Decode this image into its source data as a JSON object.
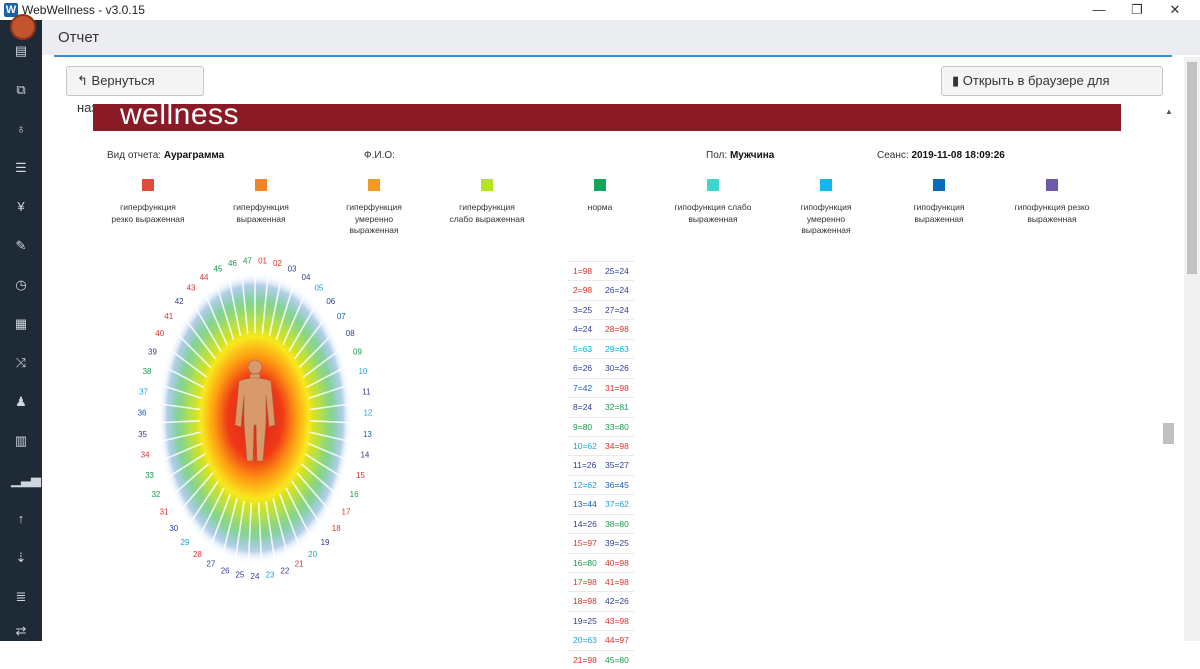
{
  "window": {
    "logo_letter": "W",
    "title": "WebWellness - v3.0.15",
    "minimize_symbol": "—",
    "restore_symbol": "❐",
    "close_symbol": "✕"
  },
  "sidebar": {
    "icons": [
      "avatar",
      "id-card-icon",
      "copy-icon",
      "stethoscope-icon",
      "sliders-icon",
      "cutlery-icon",
      "pencil-icon",
      "clock-icon",
      "calculator-icon",
      "shuffle-icon",
      "person-icon",
      "bar-chart-icon",
      "signal-icon",
      "arrow-up-icon",
      "sort-numeric-icon",
      "list-icon",
      "exchange-icon"
    ]
  },
  "header": {
    "title": "Отчет"
  },
  "toolbar": {
    "back_label": "Вернуться назад",
    "print_label": "Открыть в браузере для печати"
  },
  "report": {
    "banner_text": "wellness",
    "report_type_label": "Вид отчета:",
    "report_type_value": "Аураграмма",
    "fio_label": "Ф.И.О:",
    "gender_label": "Пол:",
    "gender_value": "Мужчина",
    "session_label": "Сеанс:",
    "session_value": "2019-11-08 18:09:26"
  },
  "legend": [
    {
      "color": "#e04b3c",
      "lines": [
        "гиперфункция",
        "резко выраженная"
      ]
    },
    {
      "color": "#f58426",
      "lines": [
        "гиперфункция",
        "выраженная"
      ]
    },
    {
      "color": "#f5991f",
      "lines": [
        "гиперфункция",
        "умеренно",
        "выраженная"
      ]
    },
    {
      "color": "#b5e51d",
      "lines": [
        "гиперфункция",
        "слабо выраженная"
      ]
    },
    {
      "color": "#12a55e",
      "lines": [
        "норма"
      ]
    },
    {
      "color": "#3fd6cf",
      "lines": [
        "гипофункция слабо",
        "выраженная"
      ]
    },
    {
      "color": "#13b7ee",
      "lines": [
        "гипофункция",
        "умеренно",
        "выраженная"
      ]
    },
    {
      "color": "#0a6bb7",
      "lines": [
        "гипофункция",
        "выраженная"
      ]
    },
    {
      "color": "#6d5aab",
      "lines": [
        "гипофункция резко",
        "выраженная"
      ]
    }
  ],
  "aura_labels": [
    {
      "text": "01",
      "color": "#d9342b"
    },
    {
      "text": "02",
      "color": "#d9342b"
    },
    {
      "text": "03",
      "color": "#2f3f8f"
    },
    {
      "text": "04",
      "color": "#2f3f8f"
    },
    {
      "text": "05",
      "color": "#1ba3db"
    },
    {
      "text": "06",
      "color": "#2f3f8f"
    },
    {
      "text": "07",
      "color": "#1660ad"
    },
    {
      "text": "08",
      "color": "#2f3f8f"
    },
    {
      "text": "09",
      "color": "#1a9a52"
    },
    {
      "text": "10",
      "color": "#1ba3db"
    },
    {
      "text": "11",
      "color": "#2f3f8f"
    },
    {
      "text": "12",
      "color": "#1ba3db"
    },
    {
      "text": "13",
      "color": "#1660ad"
    },
    {
      "text": "14",
      "color": "#2f3f8f"
    },
    {
      "text": "15",
      "color": "#d9342b"
    },
    {
      "text": "16",
      "color": "#1a9a52"
    },
    {
      "text": "17",
      "color": "#d9342b"
    },
    {
      "text": "18",
      "color": "#d9342b"
    },
    {
      "text": "19",
      "color": "#2f3f8f"
    },
    {
      "text": "20",
      "color": "#1ba3db"
    },
    {
      "text": "21",
      "color": "#d9342b"
    },
    {
      "text": "22",
      "color": "#2f3f8f"
    },
    {
      "text": "23",
      "color": "#1ba3db"
    },
    {
      "text": "24",
      "color": "#2f3f8f"
    },
    {
      "text": "25",
      "color": "#2f3f8f"
    },
    {
      "text": "26",
      "color": "#2f3f8f"
    },
    {
      "text": "27",
      "color": "#2f3f8f"
    },
    {
      "text": "28",
      "color": "#d9342b"
    },
    {
      "text": "29",
      "color": "#1ba3db"
    },
    {
      "text": "30",
      "color": "#2f3f8f"
    },
    {
      "text": "31",
      "color": "#d9342b"
    },
    {
      "text": "32",
      "color": "#1a9a52"
    },
    {
      "text": "33",
      "color": "#1a9a52"
    },
    {
      "text": "34",
      "color": "#d9342b"
    },
    {
      "text": "35",
      "color": "#2f3f8f"
    },
    {
      "text": "36",
      "color": "#1660ad"
    },
    {
      "text": "37",
      "color": "#1ba3db"
    },
    {
      "text": "38",
      "color": "#1a9a52"
    },
    {
      "text": "39",
      "color": "#2f3f8f"
    },
    {
      "text": "40",
      "color": "#d9342b"
    },
    {
      "text": "41",
      "color": "#d9342b"
    },
    {
      "text": "42",
      "color": "#2f3f8f"
    },
    {
      "text": "43",
      "color": "#d9342b"
    },
    {
      "text": "44",
      "color": "#d9342b"
    },
    {
      "text": "45",
      "color": "#1a9a52"
    },
    {
      "text": "46",
      "color": "#1a9a52"
    },
    {
      "text": "47",
      "color": "#1a9a52"
    }
  ],
  "values": [
    {
      "a": "1=98",
      "ac": "#d9342b",
      "b": "25=24",
      "bc": "#2f3f8f"
    },
    {
      "a": "2=98",
      "ac": "#d9342b",
      "b": "26=24",
      "bc": "#2f3f8f"
    },
    {
      "a": "3=25",
      "ac": "#2f3f8f",
      "b": "27=24",
      "bc": "#2f3f8f"
    },
    {
      "a": "4=24",
      "ac": "#2f3f8f",
      "b": "28=98",
      "bc": "#d9342b"
    },
    {
      "a": "5=63",
      "ac": "#1ba3db",
      "b": "29=63",
      "bc": "#1ba3db"
    },
    {
      "a": "6=26",
      "ac": "#2f3f8f",
      "b": "30=26",
      "bc": "#2f3f8f"
    },
    {
      "a": "7=42",
      "ac": "#1660ad",
      "b": "31=98",
      "bc": "#d9342b"
    },
    {
      "a": "8=24",
      "ac": "#2f3f8f",
      "b": "32=81",
      "bc": "#1a9a52"
    },
    {
      "a": "9=80",
      "ac": "#1a9a52",
      "b": "33=80",
      "bc": "#1a9a52"
    },
    {
      "a": "10=62",
      "ac": "#1ba3db",
      "b": "34=98",
      "bc": "#d9342b"
    },
    {
      "a": "11=26",
      "ac": "#2f3f8f",
      "b": "35=27",
      "bc": "#2f3f8f"
    },
    {
      "a": "12=62",
      "ac": "#1ba3db",
      "b": "36=45",
      "bc": "#1660ad"
    },
    {
      "a": "13=44",
      "ac": "#1660ad",
      "b": "37=62",
      "bc": "#1ba3db"
    },
    {
      "a": "14=26",
      "ac": "#2f3f8f",
      "b": "38=80",
      "bc": "#1a9a52"
    },
    {
      "a": "15=97",
      "ac": "#d9342b",
      "b": "39=25",
      "bc": "#2f3f8f"
    },
    {
      "a": "16=80",
      "ac": "#1a9a52",
      "b": "40=98",
      "bc": "#d9342b"
    },
    {
      "a": "17=98",
      "ac": "#d9342b",
      "b": "41=98",
      "bc": "#d9342b"
    },
    {
      "a": "18=98",
      "ac": "#d9342b",
      "b": "42=26",
      "bc": "#2f3f8f"
    },
    {
      "a": "19=25",
      "ac": "#2f3f8f",
      "b": "43=98",
      "bc": "#d9342b"
    },
    {
      "a": "20=63",
      "ac": "#1ba3db",
      "b": "44=97",
      "bc": "#d9342b"
    },
    {
      "a": "21=98",
      "ac": "#d9342b",
      "b": "45=80",
      "bc": "#1a9a52"
    }
  ]
}
